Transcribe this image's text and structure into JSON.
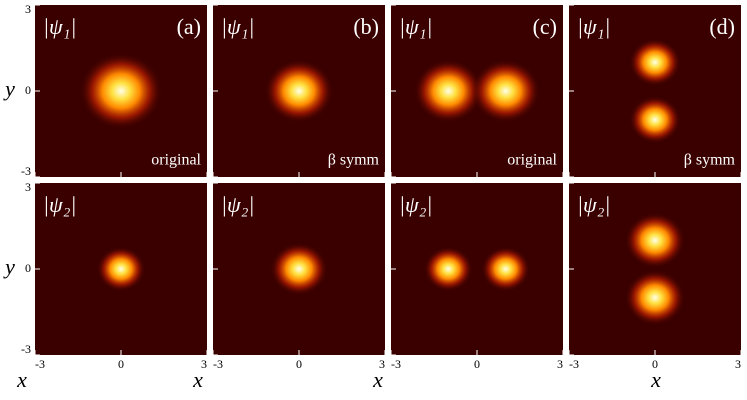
{
  "chart_data": {
    "type": "heatmap-grid",
    "x_label": "x",
    "y_label": "y",
    "xlim": [
      -3,
      3
    ],
    "ylim": [
      -3,
      3
    ],
    "xticks": [
      -3,
      0,
      3
    ],
    "yticks": [
      -3,
      0,
      3
    ],
    "rows": [
      {
        "label": "|ψ₁|",
        "panels": [
          {
            "tag": "(a)",
            "note": "original"
          },
          {
            "tag": "(b)",
            "note": "β symm"
          },
          {
            "tag": "(c)",
            "note": "original"
          },
          {
            "tag": "(d)",
            "note": "β symm"
          }
        ]
      },
      {
        "label": "|ψ₂|",
        "panels": [
          {},
          {},
          {},
          {}
        ]
      }
    ]
  }
}
